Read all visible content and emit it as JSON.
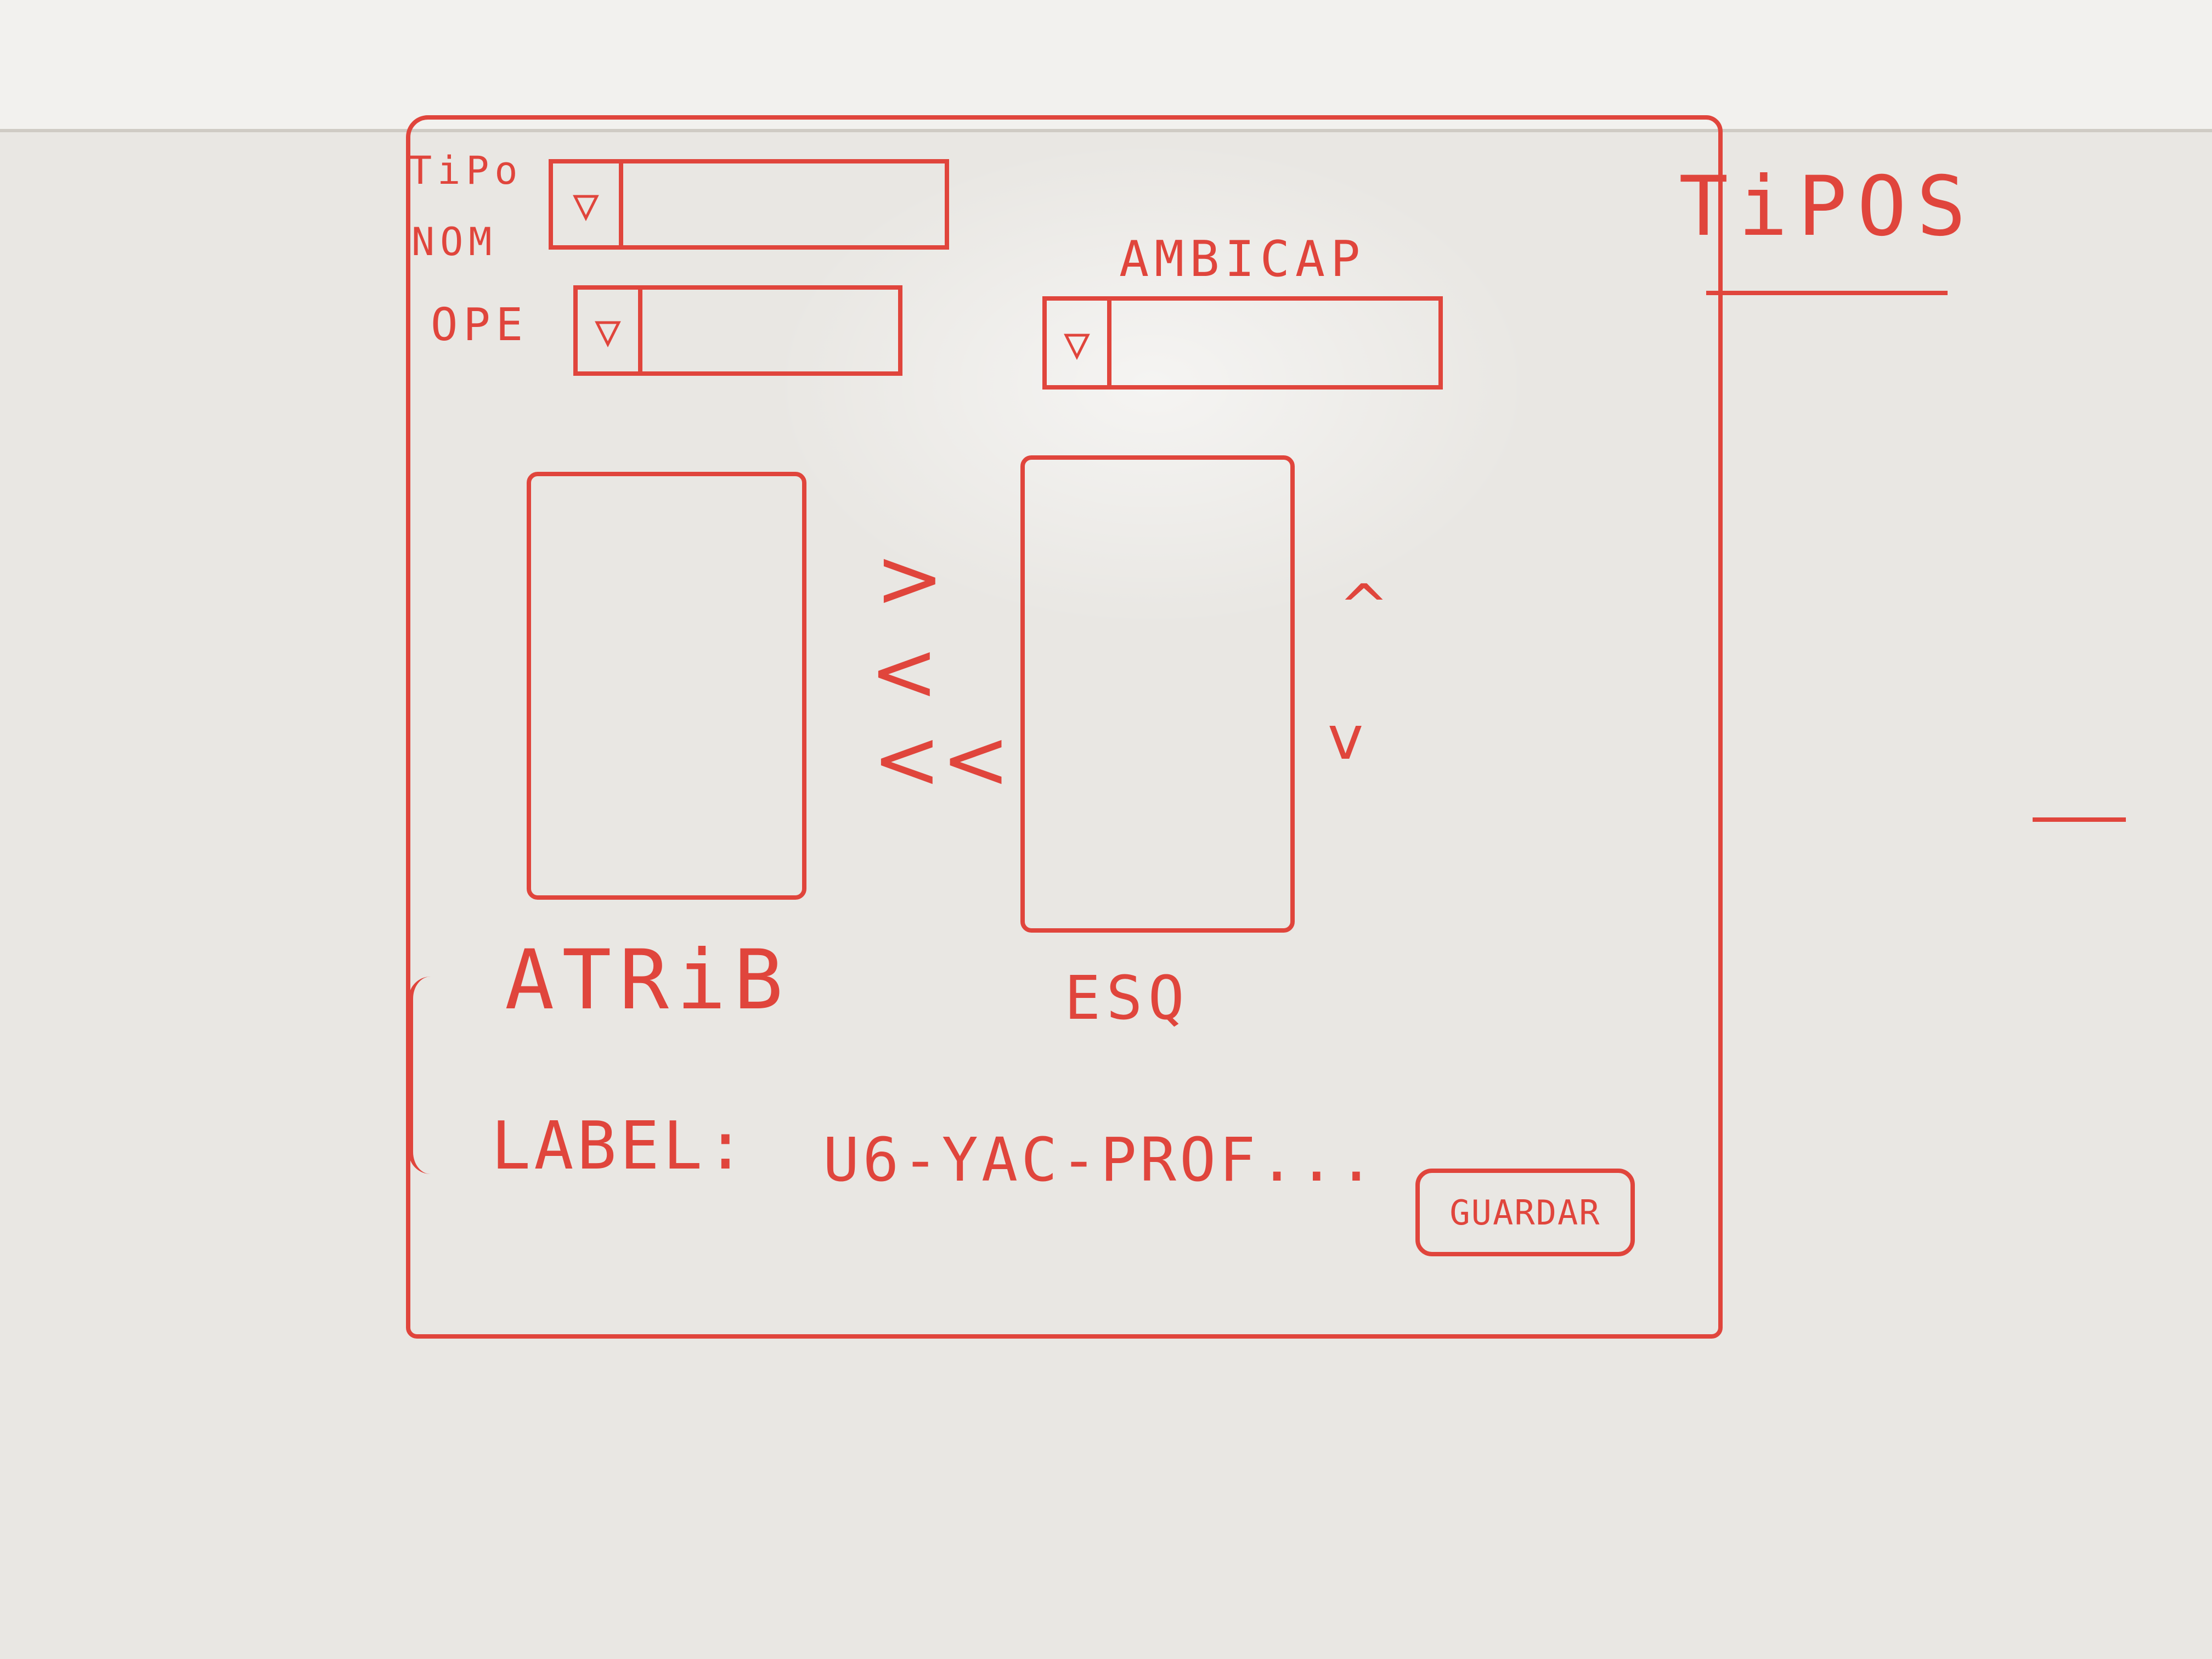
{
  "window": {
    "fields": {
      "tipo": {
        "label": "TiPo",
        "arrow": "▽"
      },
      "nom": {
        "label": "NOM"
      },
      "ope": {
        "label": "OPE",
        "arrow": "▽"
      },
      "ambicap": {
        "label": "AMBICAP",
        "arrow": "▽"
      }
    },
    "lists": {
      "atrib": {
        "label": "ATRiB"
      },
      "esq": {
        "label": "ESQ"
      }
    },
    "transfer_buttons": [
      ">",
      "<",
      "<<"
    ],
    "order_buttons": [
      "^",
      "v"
    ],
    "label_field": {
      "label": "LABEL:",
      "value": "U6-YAC-PROF..."
    },
    "save_button": {
      "label": "GUARDAR"
    }
  },
  "side_panel": {
    "title": "TiPOS"
  },
  "colors": {
    "marker": "#e0453c",
    "board": "#e9e7e3"
  }
}
